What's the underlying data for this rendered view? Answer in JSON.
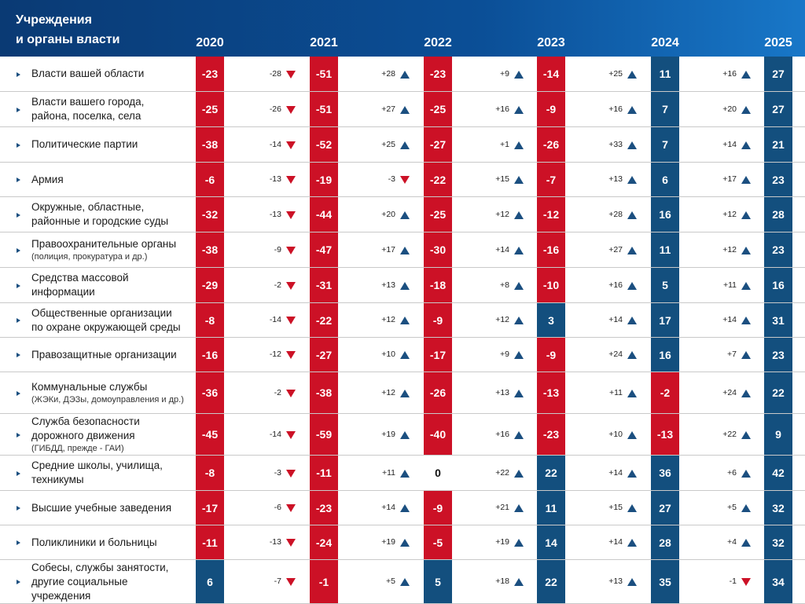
{
  "header": {
    "title": [
      "Учреждения",
      "и органы власти"
    ],
    "years": [
      "2020",
      "2021",
      "2022",
      "2023",
      "2024",
      "2025"
    ]
  },
  "rows": [
    {
      "name": [
        "Власти вашей области"
      ],
      "values": [
        "-23",
        "-51",
        "-23",
        "-14",
        "11",
        "27"
      ],
      "changes": [
        "-28",
        "+28",
        "+9",
        "+25",
        "+16"
      ]
    },
    {
      "name": [
        "Власти вашего города,",
        "района, поселка, села"
      ],
      "values": [
        "-25",
        "-51",
        "-25",
        "-9",
        "7",
        "27"
      ],
      "changes": [
        "-26",
        "+27",
        "+16",
        "+16",
        "+20"
      ]
    },
    {
      "name": [
        "Политические партии"
      ],
      "values": [
        "-38",
        "-52",
        "-27",
        "-26",
        "7",
        "21"
      ],
      "changes": [
        "-14",
        "+25",
        "+1",
        "+33",
        "+14"
      ]
    },
    {
      "name": [
        "Армия"
      ],
      "values": [
        "-6",
        "-19",
        "-22",
        "-7",
        "6",
        "23"
      ],
      "changes": [
        "-13",
        "-3",
        "+15",
        "+13",
        "+17"
      ]
    },
    {
      "name": [
        "Окружные, областные,",
        "районные  и городские суды"
      ],
      "values": [
        "-32",
        "-44",
        "-25",
        "-12",
        "16",
        "28"
      ],
      "changes": [
        "-13",
        "+20",
        "+12",
        "+28",
        "+12"
      ]
    },
    {
      "name": [
        "Правоохранительные органы"
      ],
      "note": "(полиция, прокуратура и др.)",
      "values": [
        "-38",
        "-47",
        "-30",
        "-16",
        "11",
        "23"
      ],
      "changes": [
        "-9",
        "+17",
        "+14",
        "+27",
        "+12"
      ]
    },
    {
      "name": [
        "Средства массовой",
        "информации"
      ],
      "values": [
        "-29",
        "-31",
        "-18",
        "-10",
        "5",
        "16"
      ],
      "changes": [
        "-2",
        "+13",
        "+8",
        "+16",
        "+11"
      ]
    },
    {
      "name": [
        "Общественные организации",
        "по охране окружающей среды"
      ],
      "values": [
        "-8",
        "-22",
        "-9",
        "3",
        "17",
        "31"
      ],
      "changes": [
        "-14",
        "+12",
        "+12",
        "+14",
        "+14"
      ]
    },
    {
      "name": [
        "Правозащитные организации"
      ],
      "values": [
        "-16",
        "-27",
        "-17",
        "-9",
        "16",
        "23"
      ],
      "changes": [
        "-12",
        "+10",
        "+9",
        "+24",
        "+7"
      ]
    },
    {
      "name": [
        "Коммунальные службы"
      ],
      "note": "(ЖЭКи, ДЭЗы, домоуправления и др.)",
      "values": [
        "-36",
        "-38",
        "-26",
        "-13",
        "-2",
        "22"
      ],
      "changes": [
        "-2",
        "+12",
        "+13",
        "+11",
        "+24"
      ]
    },
    {
      "name": [
        "Служба безопасности",
        "дорожного движения"
      ],
      "note": "(ГИБДД, прежде - ГАИ)",
      "values": [
        "-45",
        "-59",
        "-40",
        "-23",
        "-13",
        "9"
      ],
      "changes": [
        "-14",
        "+19",
        "+16",
        "+10",
        "+22"
      ]
    },
    {
      "name": [
        "Средние школы, училища,",
        "техникумы"
      ],
      "values": [
        "-8",
        "-11",
        "0",
        "22",
        "36",
        "42"
      ],
      "changes": [
        "-3",
        "+11",
        "+22",
        "+14",
        "+6"
      ]
    },
    {
      "name": [
        "Высшие учебные заведения"
      ],
      "values": [
        "-17",
        "-23",
        "-9",
        "11",
        "27",
        "32"
      ],
      "changes": [
        "-6",
        "+14",
        "+21",
        "+15",
        "+5"
      ]
    },
    {
      "name": [
        "Поликлиники и больницы"
      ],
      "values": [
        "-11",
        "-24",
        "-5",
        "14",
        "28",
        "32"
      ],
      "changes": [
        "-13",
        "+19",
        "+19",
        "+14",
        "+4"
      ]
    },
    {
      "name": [
        "Собесы, службы занятости,",
        "другие социальные",
        "учреждения"
      ],
      "values": [
        "6",
        "-1",
        "5",
        "22",
        "35",
        "34"
      ],
      "changes": [
        "-7",
        "+5",
        "+18",
        "+13",
        "-1"
      ]
    }
  ]
}
